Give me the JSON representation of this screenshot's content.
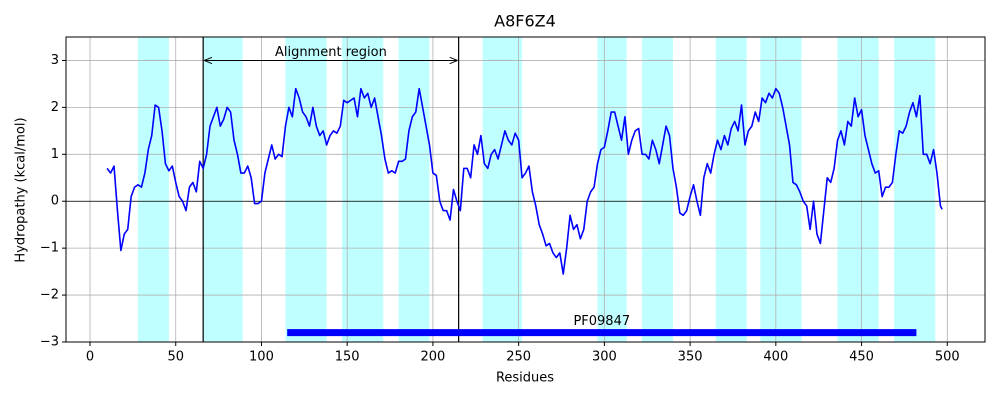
{
  "chart_data": {
    "type": "line",
    "title": "A8F6Z4",
    "x_label": "Residues",
    "y_label": "Hydropathy (kcal/mol)",
    "x": [
      10,
      12,
      14,
      16,
      18,
      20,
      22,
      24,
      26,
      28,
      30,
      32,
      34,
      36,
      38,
      40,
      42,
      44,
      46,
      48,
      50,
      52,
      54,
      56,
      58,
      60,
      62,
      64,
      66,
      68,
      70,
      72,
      74,
      76,
      78,
      80,
      82,
      84,
      86,
      88,
      90,
      92,
      94,
      96,
      98,
      100,
      102,
      104,
      106,
      108,
      110,
      112,
      114,
      116,
      118,
      120,
      122,
      124,
      126,
      128,
      130,
      132,
      134,
      136,
      138,
      140,
      142,
      144,
      146,
      148,
      150,
      152,
      154,
      156,
      158,
      160,
      162,
      164,
      166,
      168,
      170,
      172,
      174,
      176,
      178,
      180,
      182,
      184,
      186,
      188,
      190,
      192,
      194,
      196,
      198,
      200,
      202,
      204,
      206,
      208,
      210,
      212,
      214,
      216,
      218,
      220,
      222,
      224,
      226,
      228,
      230,
      232,
      234,
      236,
      238,
      240,
      242,
      244,
      246,
      248,
      250,
      252,
      254,
      256,
      258,
      260,
      262,
      264,
      266,
      268,
      270,
      272,
      274,
      276,
      278,
      280,
      282,
      284,
      286,
      288,
      290,
      292,
      294,
      296,
      298,
      300,
      302,
      304,
      306,
      308,
      310,
      312,
      314,
      316,
      318,
      320,
      322,
      324,
      326,
      328,
      330,
      332,
      334,
      336,
      338,
      340,
      342,
      344,
      346,
      348,
      350,
      352,
      354,
      356,
      358,
      360,
      362,
      364,
      366,
      368,
      370,
      372,
      374,
      376,
      378,
      380,
      382,
      384,
      386,
      388,
      390,
      392,
      394,
      396,
      398,
      400,
      402,
      404,
      406,
      408,
      410,
      412,
      414,
      416,
      418,
      420,
      422,
      424,
      426,
      428,
      430,
      432,
      434,
      436,
      438,
      440,
      442,
      444,
      446,
      448,
      450,
      452,
      454,
      456,
      458,
      460,
      462,
      464,
      466,
      468,
      470,
      472,
      474,
      476,
      478,
      480,
      482,
      484,
      486,
      488,
      490,
      492,
      494,
      496,
      497
    ],
    "values": [
      0.7,
      0.6,
      0.75,
      -0.2,
      -1.05,
      -0.7,
      -0.6,
      0.1,
      0.3,
      0.35,
      0.3,
      0.6,
      1.1,
      1.4,
      2.05,
      2.0,
      1.5,
      0.8,
      0.65,
      0.75,
      0.4,
      0.1,
      0.0,
      -0.2,
      0.3,
      0.4,
      0.2,
      0.85,
      0.7,
      1.0,
      1.6,
      1.8,
      2.0,
      1.6,
      1.75,
      2.0,
      1.9,
      1.3,
      1.0,
      0.6,
      0.6,
      0.75,
      0.5,
      -0.05,
      -0.05,
      0.0,
      0.6,
      0.9,
      1.2,
      0.9,
      1.0,
      0.95,
      1.6,
      2.0,
      1.8,
      2.4,
      2.2,
      1.9,
      1.8,
      1.6,
      2.0,
      1.6,
      1.4,
      1.5,
      1.2,
      1.4,
      1.5,
      1.45,
      1.6,
      2.15,
      2.1,
      2.15,
      2.2,
      1.8,
      2.4,
      2.2,
      2.3,
      2.0,
      2.2,
      1.8,
      1.4,
      0.9,
      0.6,
      0.65,
      0.6,
      0.85,
      0.85,
      0.9,
      1.5,
      1.8,
      1.9,
      2.4,
      2.0,
      1.6,
      1.2,
      0.6,
      0.55,
      0.0,
      -0.2,
      -0.2,
      -0.4,
      0.25,
      0.0,
      -0.2,
      0.7,
      0.7,
      0.5,
      1.2,
      1.0,
      1.4,
      0.8,
      0.7,
      1.0,
      1.1,
      0.9,
      1.2,
      1.5,
      1.3,
      1.2,
      1.45,
      1.3,
      0.5,
      0.6,
      0.75,
      0.2,
      -0.1,
      -0.5,
      -0.7,
      -0.95,
      -0.9,
      -1.1,
      -1.2,
      -1.1,
      -1.55,
      -1.0,
      -0.3,
      -0.6,
      -0.5,
      -0.8,
      -0.6,
      0.0,
      0.2,
      0.3,
      0.8,
      1.1,
      1.15,
      1.5,
      1.9,
      1.9,
      1.6,
      1.3,
      1.8,
      1.0,
      1.3,
      1.5,
      1.55,
      1.0,
      1.0,
      0.9,
      1.3,
      1.1,
      0.8,
      1.2,
      1.6,
      1.4,
      0.7,
      0.3,
      -0.25,
      -0.3,
      -0.2,
      0.1,
      0.35,
      0.0,
      -0.3,
      0.5,
      0.8,
      0.6,
      1.0,
      1.3,
      1.1,
      1.4,
      1.2,
      1.55,
      1.7,
      1.5,
      2.05,
      1.2,
      1.5,
      1.6,
      1.9,
      1.7,
      2.2,
      2.1,
      2.3,
      2.2,
      2.4,
      2.3,
      2.0,
      1.6,
      1.2,
      0.4,
      0.35,
      0.2,
      0.0,
      -0.1,
      -0.6,
      0.0,
      -0.7,
      -0.9,
      -0.2,
      0.5,
      0.4,
      0.7,
      1.3,
      1.5,
      1.2,
      1.7,
      1.6,
      2.2,
      1.8,
      1.95,
      1.4,
      1.1,
      0.8,
      0.6,
      0.65,
      0.1,
      0.3,
      0.3,
      0.4,
      1.0,
      1.5,
      1.45,
      1.6,
      1.9,
      2.1,
      1.8,
      2.25,
      1.0,
      1.0,
      0.8,
      1.1,
      0.6,
      -0.1,
      -0.17
    ],
    "color": "#0000ff",
    "xlim": [
      -14,
      522
    ],
    "xticks": [
      0,
      50,
      100,
      150,
      200,
      250,
      300,
      350,
      400,
      450,
      500
    ],
    "ylim": [
      -3,
      3.5
    ],
    "yticks": [
      {
        "value": -3,
        "label": "−3"
      },
      {
        "value": -2,
        "label": "−2"
      },
      {
        "value": -1,
        "label": "−1"
      },
      0,
      1,
      2,
      3
    ],
    "grid": true,
    "zero_line": 0,
    "regions": [
      [
        28,
        46
      ],
      [
        66,
        89
      ],
      [
        114,
        138
      ],
      [
        147,
        171
      ],
      [
        180,
        198
      ],
      [
        229,
        252
      ],
      [
        296,
        313
      ],
      [
        322,
        340
      ],
      [
        365,
        383
      ],
      [
        391,
        415
      ],
      [
        436,
        460
      ],
      [
        469,
        493
      ]
    ],
    "region_color": "#bfffff",
    "vlines": [
      66,
      215
    ],
    "annotation": {
      "text": "Alignment region",
      "x": [
        66,
        215
      ],
      "y": 3
    },
    "domain": {
      "name": "PF09847",
      "x": [
        115,
        482
      ],
      "y": -2.8,
      "color": "#0000ff"
    }
  }
}
